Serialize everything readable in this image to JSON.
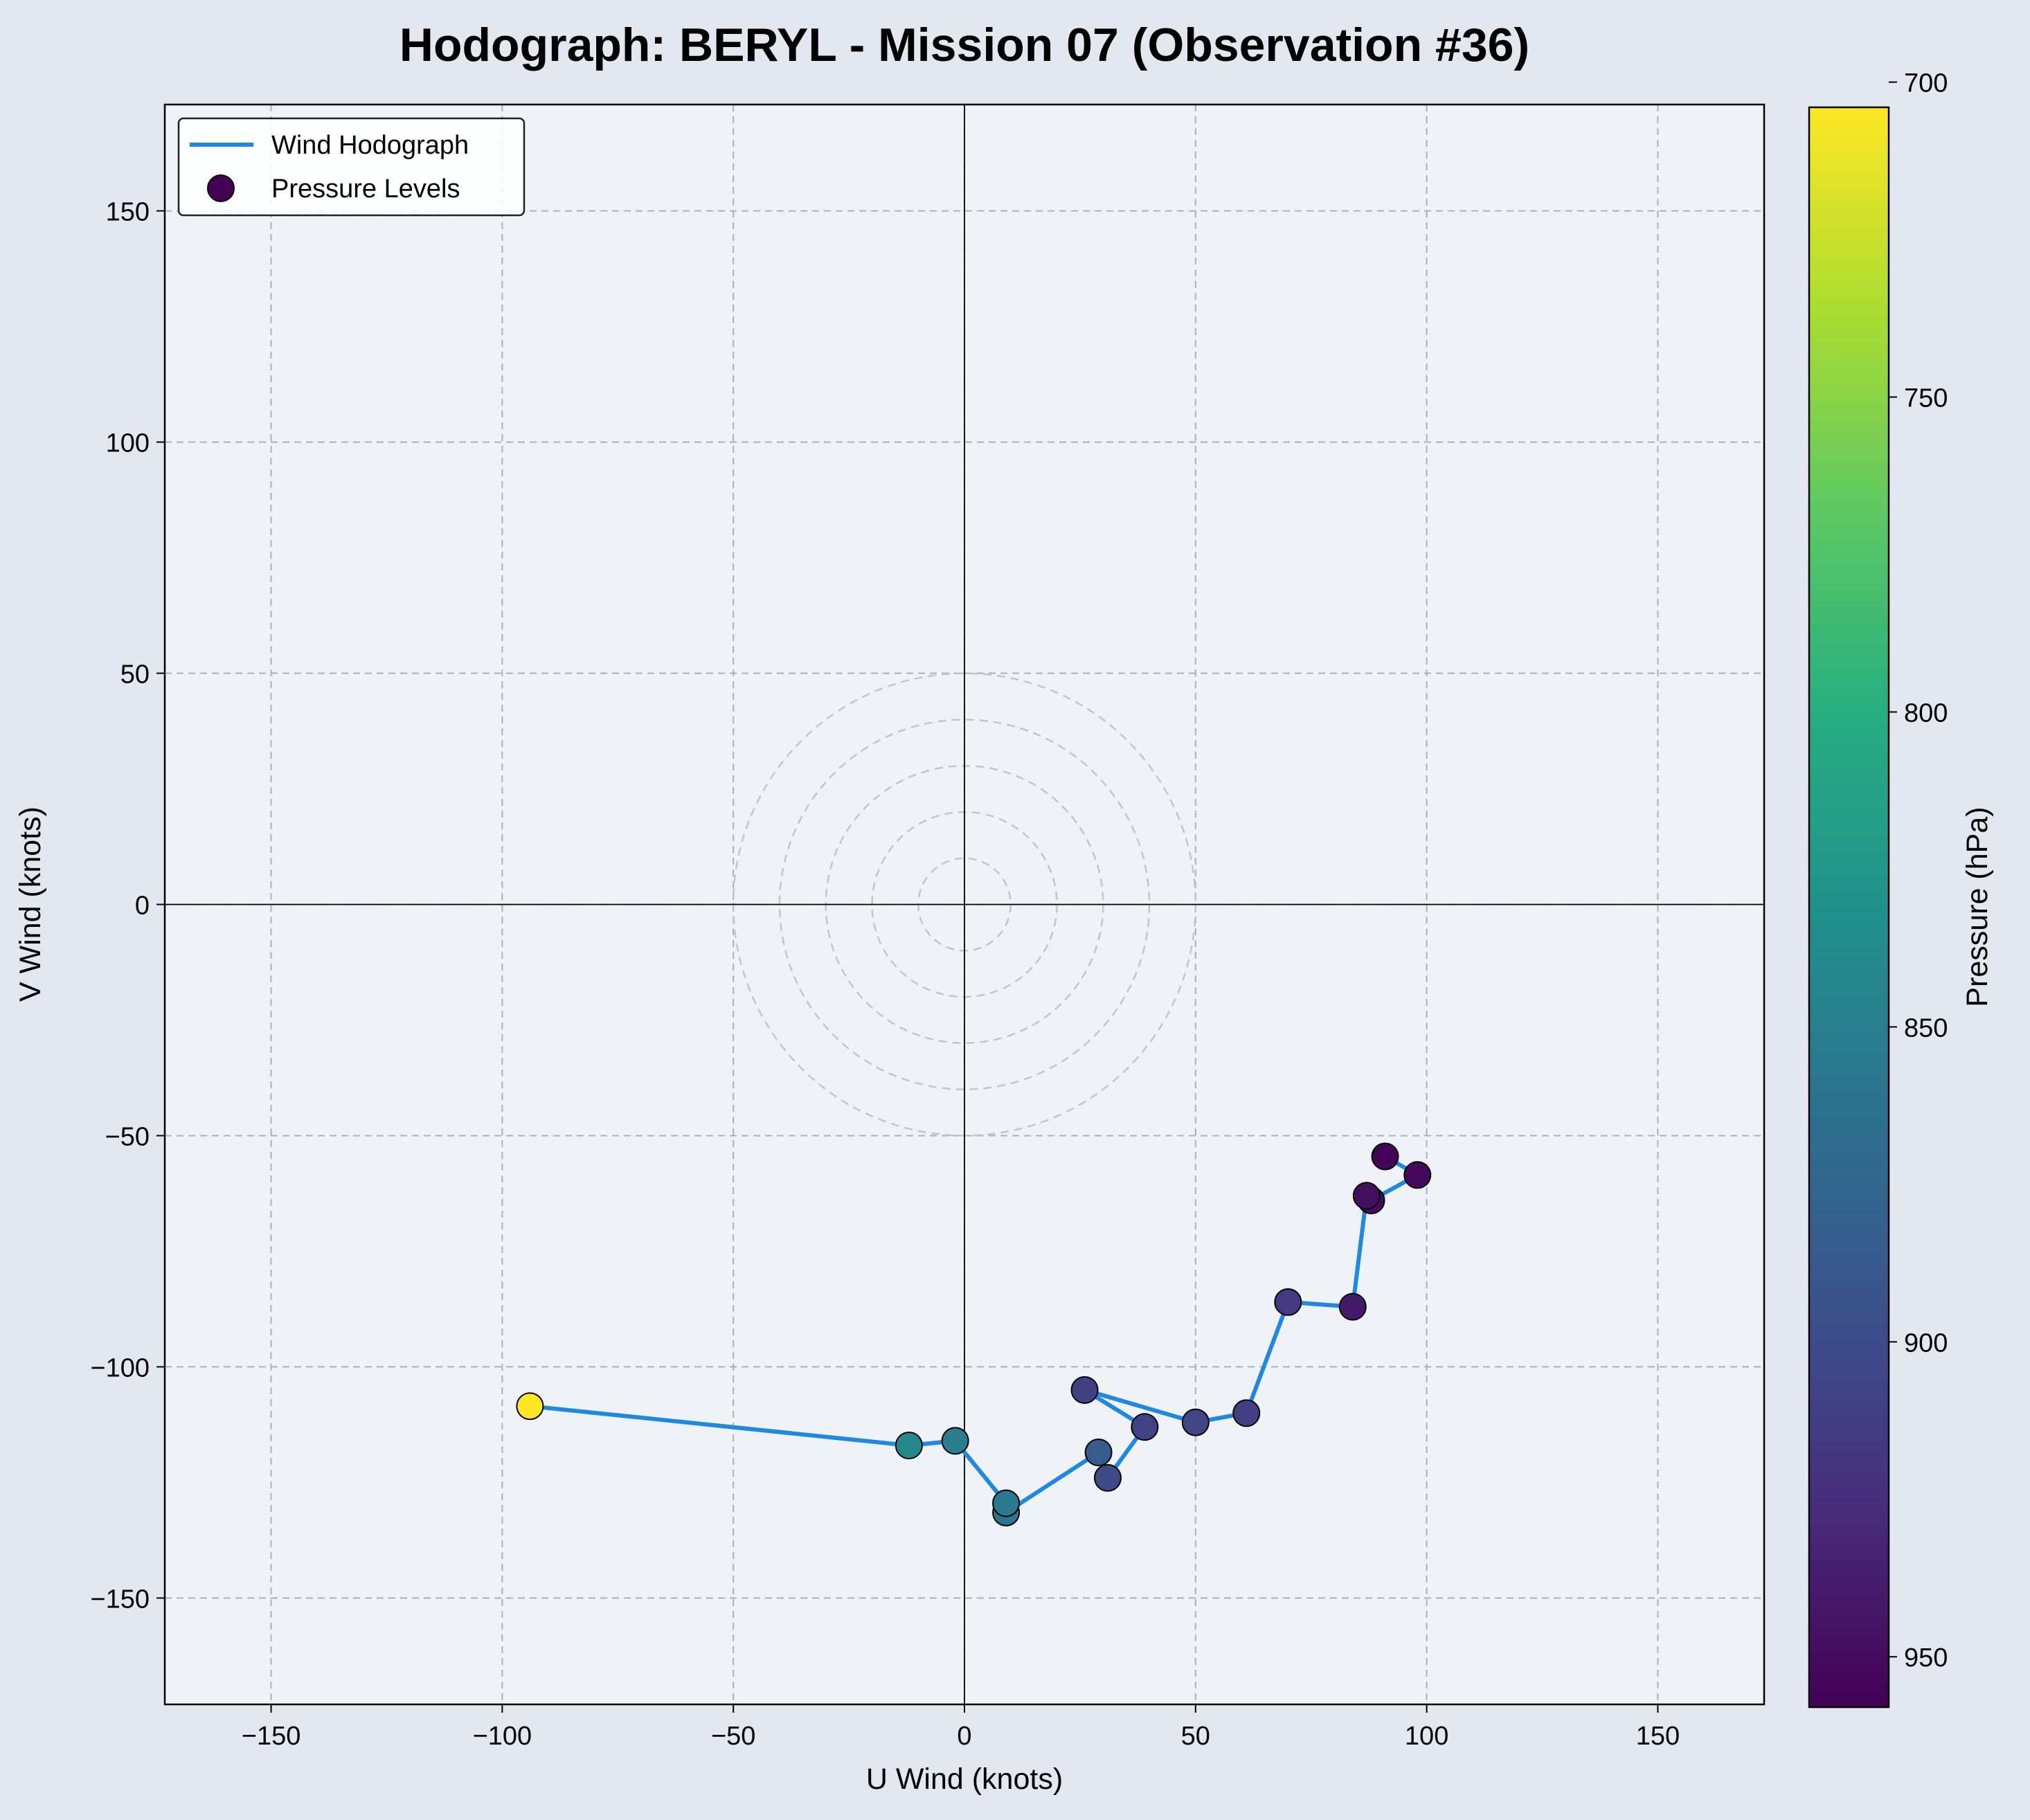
{
  "chart_data": {
    "type": "scatter",
    "title": "Hodograph: BERYL - Mission 07 (Observation #36)",
    "xlabel": "U Wind (knots)",
    "ylabel": "V Wind (knots)",
    "xlim": [
      -173,
      173
    ],
    "ylim": [
      -173,
      173
    ],
    "xticks": [
      -150,
      -100,
      -50,
      0,
      50,
      100,
      150
    ],
    "yticks": [
      -150,
      -100,
      -50,
      0,
      50,
      100,
      150
    ],
    "x_tick_labels": [
      "−150",
      "−100",
      "−50",
      "0",
      "50",
      "100",
      "150"
    ],
    "y_tick_labels": [
      "−150",
      "−100",
      "−50",
      "0",
      "50",
      "100",
      "150"
    ],
    "grid": true,
    "legend_position": "top-left",
    "legend": [
      "Wind Hodograph",
      "Pressure Levels"
    ],
    "range_rings": [
      10,
      20,
      30,
      40,
      50
    ],
    "series": [
      {
        "name": "Wind Hodograph",
        "kind": "line",
        "color": "#1e88e5"
      },
      {
        "name": "Pressure Levels",
        "kind": "scatter",
        "points": [
          {
            "u": 91,
            "v": -54.5,
            "p": 955
          },
          {
            "u": 98,
            "v": -58.5,
            "p": 952
          },
          {
            "u": 88,
            "v": -64,
            "p": 950
          },
          {
            "u": 87,
            "v": -63,
            "p": 948
          },
          {
            "u": 84,
            "v": -87,
            "p": 940
          },
          {
            "u": 70,
            "v": -86,
            "p": 915
          },
          {
            "u": 61,
            "v": -110,
            "p": 912
          },
          {
            "u": 50,
            "v": -112,
            "p": 905
          },
          {
            "u": 26,
            "v": -105,
            "p": 910
          },
          {
            "u": 39,
            "v": -113,
            "p": 908
          },
          {
            "u": 31,
            "v": -124,
            "p": 900
          },
          {
            "u": 29,
            "v": -118.5,
            "p": 885
          },
          {
            "u": 9,
            "v": -131.5,
            "p": 860
          },
          {
            "u": 9,
            "v": -129.5,
            "p": 855
          },
          {
            "u": -2,
            "v": -116,
            "p": 850
          },
          {
            "u": -12,
            "v": -117,
            "p": 840
          },
          {
            "u": -94,
            "v": -108.5,
            "p": 700
          }
        ]
      }
    ],
    "colorbar": {
      "label": "Pressure (hPa)",
      "colormap": "viridis",
      "range": [
        704,
        958
      ],
      "inverted": true,
      "ticks": [
        700,
        750,
        800,
        850,
        900,
        950
      ]
    }
  }
}
